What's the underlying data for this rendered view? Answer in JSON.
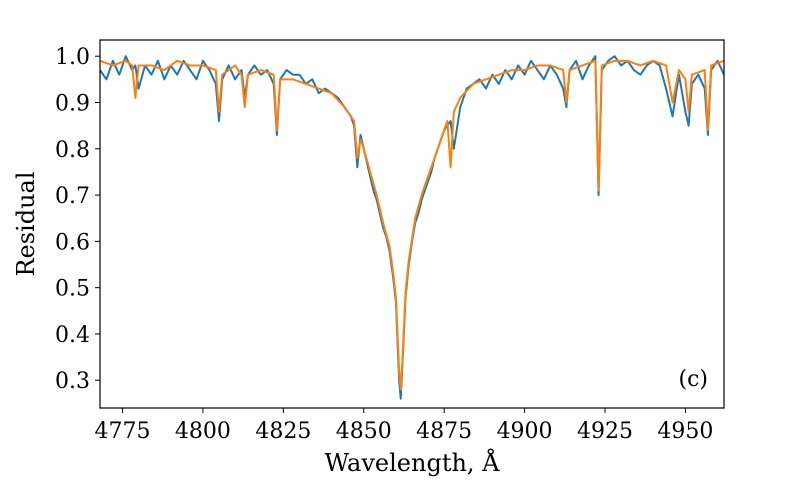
{
  "chart_data": {
    "type": "line",
    "xlabel": "Wavelength, Å",
    "ylabel": "Residual",
    "annotation": "(c)",
    "xlim": [
      4768,
      4962
    ],
    "ylim": [
      0.24,
      1.035
    ],
    "x_ticks": [
      4775,
      4800,
      4825,
      4850,
      4875,
      4900,
      4925,
      4950
    ],
    "y_ticks": [
      0.3,
      0.4,
      0.5,
      0.6,
      0.7,
      0.8,
      0.9,
      1.0
    ],
    "x_tick_labels": [
      "4775",
      "4800",
      "4825",
      "4850",
      "4875",
      "4900",
      "4925",
      "4950"
    ],
    "y_tick_labels": [
      "0.3",
      "0.4",
      "0.5",
      "0.6",
      "0.7",
      "0.8",
      "0.9",
      "1.0"
    ],
    "grid": false,
    "legend": "none",
    "series": [
      {
        "color": "#1f77b4",
        "x": [
          4768,
          4770,
          4772,
          4774,
          4776,
          4778,
          4779,
          4780,
          4782,
          4784,
          4786,
          4788,
          4790,
          4792,
          4794,
          4796,
          4798,
          4800,
          4802,
          4804,
          4805,
          4806,
          4808,
          4810,
          4812,
          4813,
          4814,
          4816,
          4818,
          4820,
          4822,
          4823,
          4824,
          4826,
          4828,
          4830,
          4832,
          4834,
          4836,
          4838,
          4840,
          4842,
          4844,
          4846,
          4847,
          4848,
          4849,
          4850,
          4851,
          4852,
          4853,
          4854,
          4855,
          4856,
          4857,
          4858,
          4859,
          4860,
          4861,
          4861.5,
          4862,
          4863,
          4864,
          4865,
          4866,
          4867,
          4868,
          4869,
          4870,
          4871,
          4872,
          4873,
          4874,
          4875,
          4876,
          4877,
          4878,
          4880,
          4882,
          4884,
          4886,
          4888,
          4890,
          4892,
          4894,
          4896,
          4898,
          4900,
          4902,
          4904,
          4906,
          4908,
          4910,
          4912,
          4913,
          4914,
          4916,
          4918,
          4920,
          4922,
          4923,
          4924,
          4926,
          4928,
          4930,
          4932,
          4934,
          4936,
          4938,
          4940,
          4942,
          4944,
          4946,
          4948,
          4950,
          4951,
          4952,
          4954,
          4956,
          4957,
          4958,
          4960,
          4962
        ],
        "y": [
          0.97,
          0.95,
          0.99,
          0.96,
          1.0,
          0.97,
          0.98,
          0.93,
          0.98,
          0.96,
          0.99,
          0.95,
          0.98,
          0.96,
          0.99,
          0.97,
          0.95,
          0.99,
          0.97,
          0.94,
          0.86,
          0.95,
          0.98,
          0.95,
          0.97,
          0.91,
          0.96,
          0.98,
          0.96,
          0.97,
          0.94,
          0.83,
          0.95,
          0.97,
          0.96,
          0.96,
          0.94,
          0.95,
          0.92,
          0.93,
          0.92,
          0.91,
          0.89,
          0.87,
          0.85,
          0.76,
          0.83,
          0.8,
          0.77,
          0.74,
          0.71,
          0.69,
          0.66,
          0.63,
          0.61,
          0.58,
          0.53,
          0.47,
          0.3,
          0.26,
          0.33,
          0.48,
          0.55,
          0.6,
          0.64,
          0.66,
          0.69,
          0.71,
          0.73,
          0.75,
          0.78,
          0.8,
          0.82,
          0.84,
          0.85,
          0.86,
          0.8,
          0.89,
          0.93,
          0.94,
          0.95,
          0.93,
          0.96,
          0.94,
          0.97,
          0.95,
          0.98,
          0.96,
          0.99,
          0.97,
          0.95,
          0.98,
          0.96,
          0.93,
          0.89,
          0.97,
          0.99,
          0.95,
          0.98,
          1.0,
          0.7,
          0.97,
          0.99,
          1.0,
          0.98,
          0.99,
          0.97,
          0.96,
          0.98,
          0.99,
          0.98,
          0.93,
          0.87,
          0.96,
          0.88,
          0.85,
          0.94,
          0.96,
          0.93,
          0.83,
          0.97,
          0.99,
          0.96
        ]
      },
      {
        "color": "#ff7f0e",
        "x": [
          4768,
          4772,
          4776,
          4778,
          4779,
          4780,
          4784,
          4788,
          4792,
          4796,
          4800,
          4804,
          4805,
          4806,
          4810,
          4812,
          4813,
          4814,
          4818,
          4822,
          4823,
          4824,
          4828,
          4832,
          4836,
          4840,
          4844,
          4847,
          4848,
          4849,
          4850,
          4852,
          4854,
          4856,
          4858,
          4859,
          4860,
          4861,
          4861.5,
          4862,
          4863,
          4864,
          4866,
          4868,
          4870,
          4872,
          4874,
          4875,
          4876,
          4877,
          4878,
          4880,
          4884,
          4888,
          4892,
          4896,
          4900,
          4904,
          4908,
          4912,
          4913,
          4914,
          4918,
          4922,
          4923,
          4924,
          4928,
          4932,
          4936,
          4940,
          4944,
          4946,
          4948,
          4950,
          4951,
          4952,
          4956,
          4957,
          4958,
          4962
        ],
        "y": [
          0.99,
          0.98,
          0.99,
          0.98,
          0.91,
          0.98,
          0.98,
          0.97,
          0.99,
          0.98,
          0.98,
          0.97,
          0.88,
          0.96,
          0.98,
          0.96,
          0.89,
          0.96,
          0.97,
          0.96,
          0.84,
          0.95,
          0.95,
          0.94,
          0.93,
          0.92,
          0.89,
          0.86,
          0.78,
          0.82,
          0.8,
          0.75,
          0.7,
          0.64,
          0.59,
          0.54,
          0.48,
          0.32,
          0.28,
          0.34,
          0.49,
          0.56,
          0.65,
          0.7,
          0.74,
          0.78,
          0.82,
          0.84,
          0.86,
          0.76,
          0.88,
          0.91,
          0.94,
          0.95,
          0.96,
          0.97,
          0.97,
          0.98,
          0.98,
          0.97,
          0.9,
          0.97,
          0.98,
          0.99,
          0.71,
          0.98,
          0.99,
          0.99,
          0.98,
          0.99,
          0.98,
          0.9,
          0.97,
          0.95,
          0.88,
          0.96,
          0.97,
          0.84,
          0.98,
          0.99
        ]
      }
    ]
  }
}
